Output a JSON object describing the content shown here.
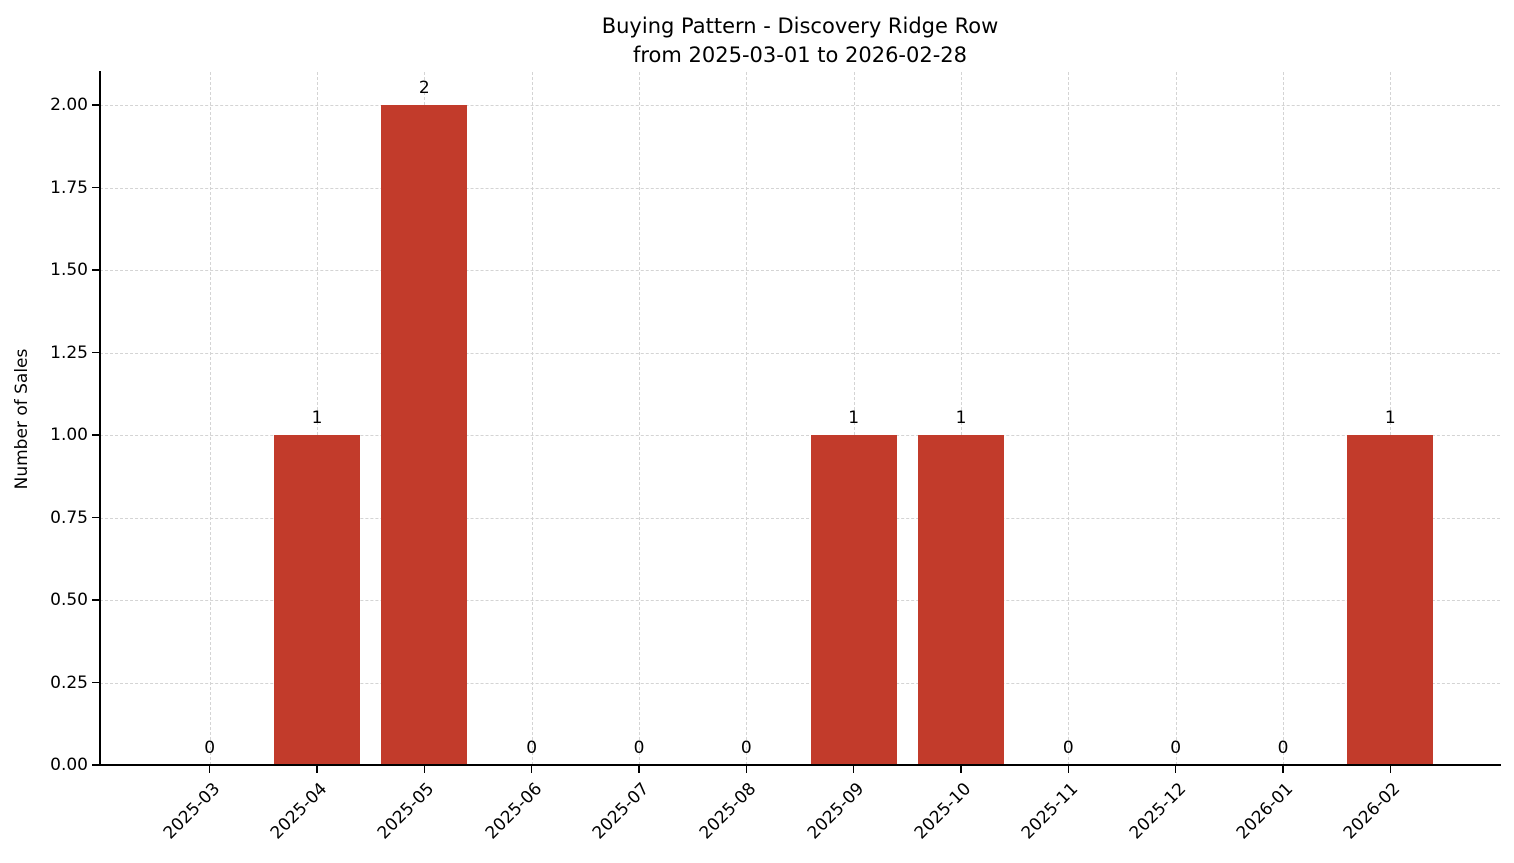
{
  "chart_data": {
    "type": "bar",
    "title": "Buying Pattern - Discovery Ridge Row\nfrom 2025-03-01 to 2026-02-28",
    "title_line1": "Buying Pattern - Discovery Ridge Row",
    "title_line2": "from 2025-03-01 to 2026-02-28",
    "xlabel": "",
    "ylabel": "Number of Sales",
    "categories": [
      "2025-03",
      "2025-04",
      "2025-05",
      "2025-06",
      "2025-07",
      "2025-08",
      "2025-09",
      "2025-10",
      "2025-11",
      "2025-12",
      "2026-01",
      "2026-02"
    ],
    "values": [
      0,
      1,
      2,
      0,
      0,
      0,
      1,
      1,
      0,
      0,
      0,
      1
    ],
    "bar_labels": [
      "0",
      "1",
      "2",
      "0",
      "0",
      "0",
      "1",
      "1",
      "0",
      "0",
      "0",
      "1"
    ],
    "ylim": [
      0,
      2.1
    ],
    "yticks": [
      0,
      0.25,
      0.5,
      0.75,
      1,
      1.25,
      1.5,
      1.75,
      2
    ],
    "ytick_labels": [
      "0.00",
      "0.25",
      "0.50",
      "0.75",
      "1.00",
      "1.25",
      "1.50",
      "1.75",
      "2.00"
    ],
    "bar_color": "#c23b2b",
    "grid": true,
    "grid_style": "dashed",
    "legend": "none"
  }
}
